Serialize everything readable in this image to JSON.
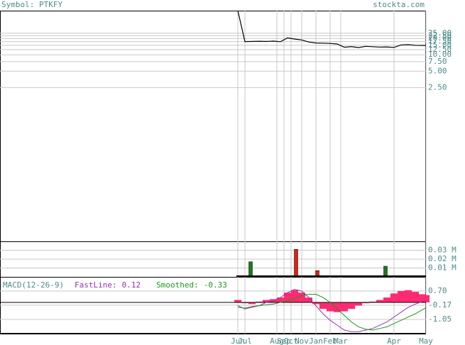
{
  "header": {
    "symbol": "Symbol: PTKFY",
    "site": "stockta.com"
  },
  "chart_data": [
    {
      "type": "line",
      "log_scale": true,
      "grid": true,
      "color": "#000000",
      "xlim": [
        0,
        120
      ],
      "ylim": [
        0.0037,
        65
      ],
      "xticks": [
        {
          "value": 67,
          "label": "Jun"
        },
        {
          "value": 69,
          "label": "Jul"
        },
        {
          "value": 78,
          "label": "Aug"
        },
        {
          "value": 80,
          "label": "Sep"
        },
        {
          "value": 82,
          "label": "Oct"
        },
        {
          "value": 85,
          "label": "Nov"
        },
        {
          "value": 89,
          "label": "Jan"
        },
        {
          "value": 93,
          "label": "Feb"
        },
        {
          "value": 96,
          "label": "Mar"
        },
        {
          "value": 111,
          "label": "Apr"
        },
        {
          "value": 120,
          "label": "May"
        }
      ],
      "yticks": [
        {
          "value": 2.5,
          "label": "2.50"
        },
        {
          "value": 5,
          "label": "5.00"
        },
        {
          "value": 7.5,
          "label": "7.50"
        },
        {
          "value": 10,
          "label": "10.00"
        },
        {
          "value": 12.5,
          "label": "12.50"
        },
        {
          "value": 15,
          "label": "15.00"
        },
        {
          "value": 17.5,
          "label": "17.50"
        },
        {
          "value": 20,
          "label": "20.00"
        },
        {
          "value": 22.5,
          "label": "22.50"
        },
        {
          "value": 25,
          "label": "25.00"
        }
      ],
      "x": [
        67,
        69,
        71,
        73,
        75,
        77,
        79,
        81,
        83,
        85,
        87,
        89,
        91,
        93,
        95,
        97,
        99,
        101,
        103,
        105,
        107,
        109,
        111,
        113,
        115,
        117,
        119,
        120
      ],
      "values": [
        65,
        17.5,
        17.6,
        17.8,
        17.6,
        17.9,
        17.4,
        20.5,
        19.5,
        18.8,
        17.2,
        16.5,
        16.4,
        16.2,
        15.8,
        13.8,
        14.2,
        13.6,
        14.3,
        14.1,
        13.9,
        14,
        13.7,
        15.2,
        15.4,
        15,
        14.9,
        14.9
      ]
    },
    {
      "type": "bar",
      "xlim": [
        0,
        120
      ],
      "ylim": [
        0,
        0.04
      ],
      "yticks": [
        {
          "value": 0.01,
          "label": "0.01 M"
        },
        {
          "value": 0.02,
          "label": "0.02 M"
        },
        {
          "value": 0.03,
          "label": "0.03 M"
        }
      ],
      "x": [
        70.6,
        72.6,
        83.4,
        89.4,
        108.6
      ],
      "values": [
        0.017,
        0.001,
        0.031,
        0.007,
        0.012
      ],
      "colors": [
        "#1a7a1a",
        "#1a7a1a",
        "#e02010",
        "#e02010",
        "#1a7a1a"
      ]
    },
    {
      "type": "macd",
      "title": "MACD(12-26-9)",
      "xlim": [
        0,
        120
      ],
      "ylim": [
        -1.92,
        1.57
      ],
      "yticks": [
        {
          "value": 0.7,
          "label": "0.70"
        },
        -0.17,
        -1.05
      ],
      "x": [
        67,
        69,
        71,
        73,
        75,
        77,
        79,
        81,
        83,
        85,
        87,
        89,
        91,
        93,
        95,
        97,
        99,
        101,
        103,
        105,
        107,
        109,
        111,
        113,
        115,
        117,
        119,
        120
      ],
      "series": [
        {
          "color": "#ff2a70",
          "values": [
            0.15,
            -0.05,
            -0.1,
            0.05,
            0.15,
            0.2,
            0.3,
            0.6,
            0.75,
            0.6,
            0.3,
            -0.1,
            -0.4,
            -0.55,
            -0.6,
            -0.55,
            -0.4,
            -0.2,
            -0.05,
            0.05,
            0.15,
            0.3,
            0.55,
            0.7,
            0.75,
            0.65,
            0.5,
            0.45
          ]
        },
        {
          "name": "FastLine:",
          "color": "#9a30b0",
          "values": [
            -0.2,
            -0.4,
            -0.3,
            -0.2,
            0,
            0.1,
            0.3,
            0.6,
            0.8,
            0.7,
            0.3,
            -0.2,
            -0.7,
            -1.1,
            -1.4,
            -1.7,
            -1.8,
            -1.8,
            -1.7,
            -1.6,
            -1.4,
            -1.2,
            -0.9,
            -0.6,
            -0.3,
            -0.1,
            0.05,
            0.12
          ]
        },
        {
          "name": "Smoothed:",
          "color": "#1a9a1a",
          "values": [
            -0.3,
            -0.35,
            -0.25,
            -0.2,
            -0.15,
            -0.1,
            0,
            0.1,
            0.25,
            0.4,
            0.5,
            0.5,
            0.3,
            0,
            -0.4,
            -0.8,
            -1.2,
            -1.5,
            -1.65,
            -1.7,
            -1.6,
            -1.5,
            -1.3,
            -1.1,
            -0.9,
            -0.7,
            -0.45,
            -0.33
          ]
        }
      ]
    }
  ]
}
